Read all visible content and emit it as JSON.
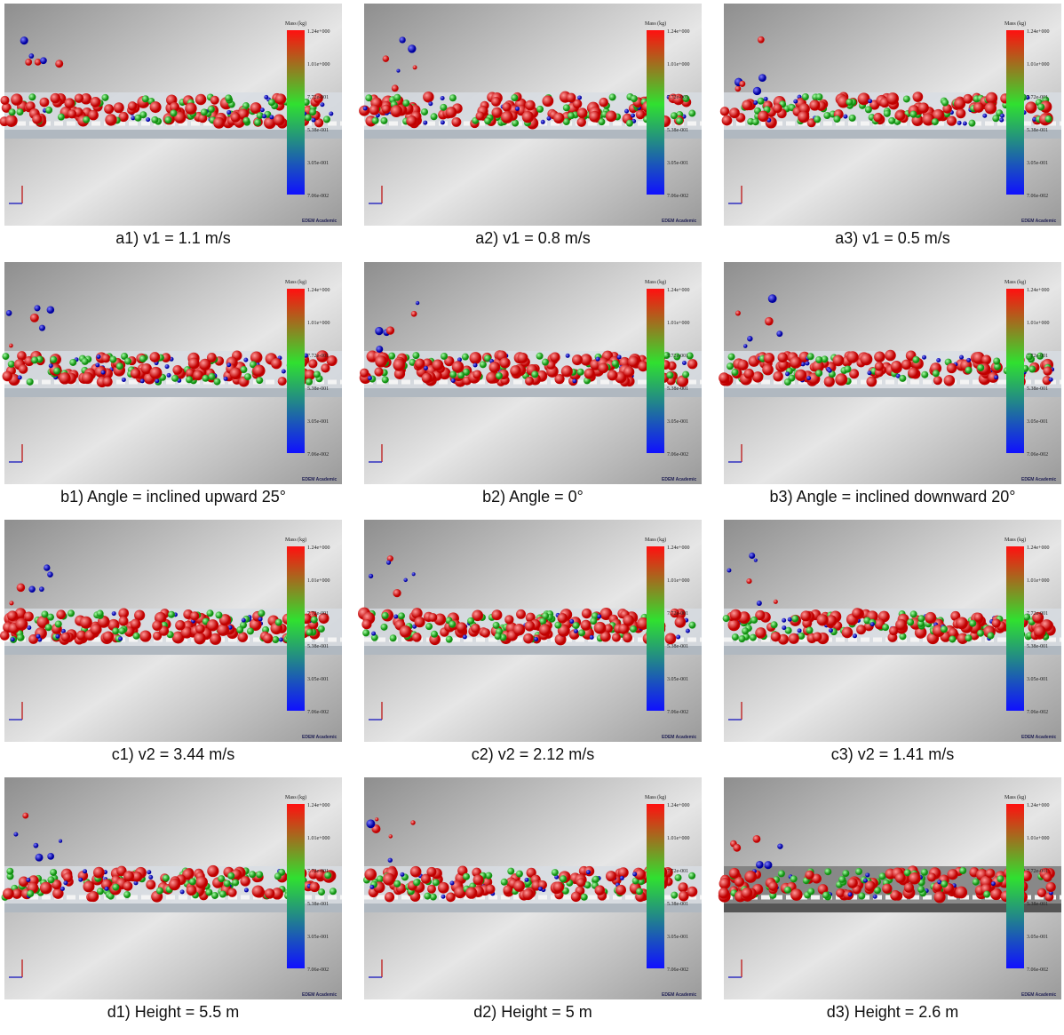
{
  "panels": [
    {
      "caption": "a1) v1 = 1.1 m/s"
    },
    {
      "caption": "a2) v1 = 0.8 m/s"
    },
    {
      "caption": "a3) v1 = 0.5 m/s"
    },
    {
      "caption": "b1) Angle = inclined upward 25°"
    },
    {
      "caption": "b2) Angle = 0°"
    },
    {
      "caption": "b3) Angle = inclined downward 20°"
    },
    {
      "caption": "c1) v2 = 3.44 m/s"
    },
    {
      "caption": "c2) v2 = 2.12 m/s"
    },
    {
      "caption": "c3) v2 = 1.41 m/s"
    },
    {
      "caption": "d1) Height = 5.5 m"
    },
    {
      "caption": "d2) Height = 5 m"
    },
    {
      "caption": "d3) Height = 2.6 m"
    }
  ],
  "colorbar": {
    "title": "Mass (kg)",
    "labels": [
      "1.24e+000",
      "1.01e+000",
      "7.72e-001",
      "5.38e-001",
      "3.05e-001",
      "7.06e-002"
    ]
  },
  "watermark": "EDEM Academic"
}
